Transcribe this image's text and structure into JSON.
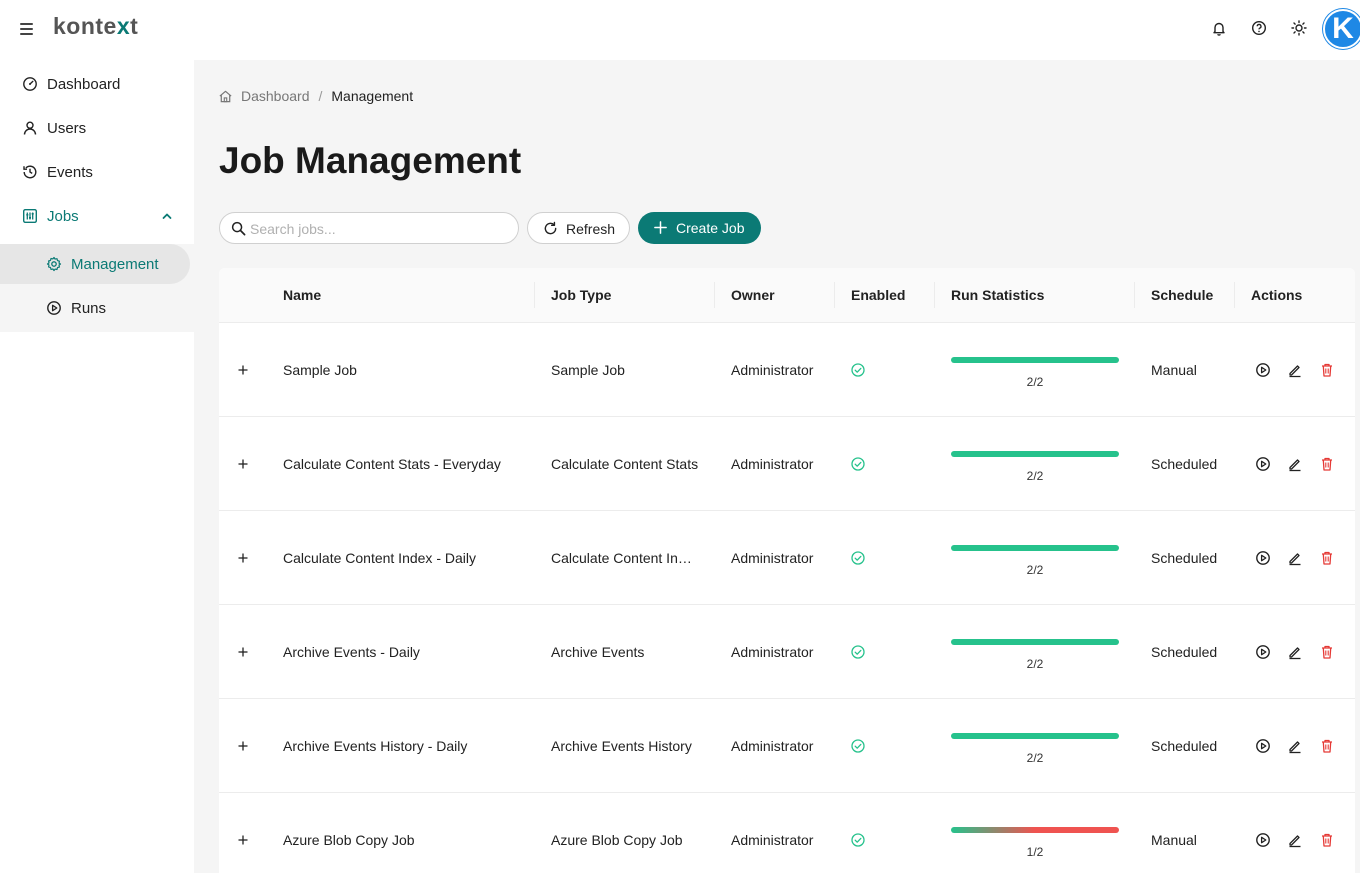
{
  "header": {
    "brand_prefix": "konte",
    "brand_accent": "x",
    "brand_suffix": "t",
    "avatar_letter": "K",
    "colors": {
      "accent": "#0b7a75",
      "avatar": "#1e88e5"
    },
    "icons": [
      "menu-icon",
      "bell-icon",
      "help-icon",
      "theme-sun-icon"
    ]
  },
  "sidebar": {
    "items": [
      {
        "label": "Dashboard",
        "icon": "gauge-icon"
      },
      {
        "label": "Users",
        "icon": "user-icon"
      },
      {
        "label": "Events",
        "icon": "history-icon"
      },
      {
        "label": "Jobs",
        "icon": "jobs-icon"
      }
    ],
    "jobs_sub": [
      {
        "label": "Management",
        "icon": "gear-icon"
      },
      {
        "label": "Runs",
        "icon": "play-circle-icon"
      }
    ]
  },
  "breadcrumb": {
    "home": "Dashboard",
    "current": "Management",
    "separator": "/"
  },
  "page": {
    "title": "Job Management"
  },
  "toolbar": {
    "search_placeholder": "Search jobs...",
    "refresh_label": "Refresh",
    "create_label": "Create Job"
  },
  "table": {
    "columns": [
      "Name",
      "Job Type",
      "Owner",
      "Enabled",
      "Run Statistics",
      "Schedule",
      "Actions"
    ],
    "rows": [
      {
        "name": "Sample Job",
        "type": "Sample Job",
        "owner": "Administrator",
        "enabled": true,
        "success": 2,
        "total": 2,
        "stats": "2/2",
        "schedule": "Manual"
      },
      {
        "name": "Calculate Content Stats - Everyday",
        "type": "Calculate Content Stats",
        "owner": "Administrator",
        "enabled": true,
        "success": 2,
        "total": 2,
        "stats": "2/2",
        "schedule": "Scheduled"
      },
      {
        "name": "Calculate Content Index - Daily",
        "type": "Calculate Content In…",
        "owner": "Administrator",
        "enabled": true,
        "success": 2,
        "total": 2,
        "stats": "2/2",
        "schedule": "Scheduled"
      },
      {
        "name": "Archive Events - Daily",
        "type": "Archive Events",
        "owner": "Administrator",
        "enabled": true,
        "success": 2,
        "total": 2,
        "stats": "2/2",
        "schedule": "Scheduled"
      },
      {
        "name": "Archive Events History - Daily",
        "type": "Archive Events History",
        "owner": "Administrator",
        "enabled": true,
        "success": 2,
        "total": 2,
        "stats": "2/2",
        "schedule": "Scheduled"
      },
      {
        "name": "Azure Blob Copy Job",
        "type": "Azure Blob Copy Job",
        "owner": "Administrator",
        "enabled": true,
        "success": 1,
        "total": 2,
        "stats": "1/2",
        "schedule": "Manual"
      }
    ],
    "colors": {
      "success": "#26c28c",
      "failure": "#ef5350",
      "enabled": "#26c28c",
      "delete": "#e53935"
    }
  }
}
